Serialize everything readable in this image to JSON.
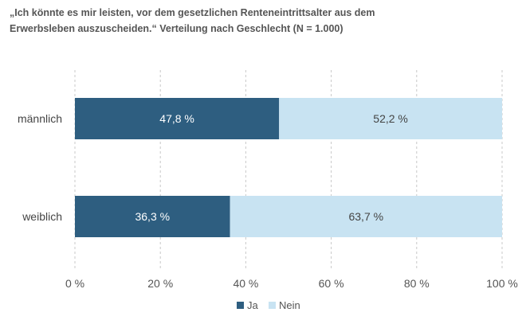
{
  "chart_data": {
    "type": "bar",
    "orientation": "horizontal",
    "stacked": true,
    "title_lines": [
      "„Ich könnte es mir leisten, vor dem gesetzlichen Renteneintrittsalter aus dem",
      "Erwerbsleben auszuscheiden.“ Verteilung nach Geschlecht (N = 1.000)"
    ],
    "categories": [
      "männlich",
      "weiblich"
    ],
    "series": [
      {
        "name": "Ja",
        "values": [
          47.8,
          36.3
        ],
        "labels": [
          "47,8 %",
          "36,3 %"
        ],
        "color": "#2e5e80",
        "label_color": "#ffffff"
      },
      {
        "name": "Nein",
        "values": [
          52.2,
          63.7
        ],
        "labels": [
          "52,2 %",
          "63,7 %"
        ],
        "color": "#c8e3f2",
        "label_color": "#444444"
      }
    ],
    "xlim": [
      0,
      100
    ],
    "x_ticks": [
      0,
      20,
      40,
      60,
      80,
      100
    ],
    "x_tick_labels": [
      "0 %",
      "20 %",
      "40 %",
      "60 %",
      "80 %",
      "100 %"
    ],
    "grid": true,
    "legend_position": "bottom"
  }
}
